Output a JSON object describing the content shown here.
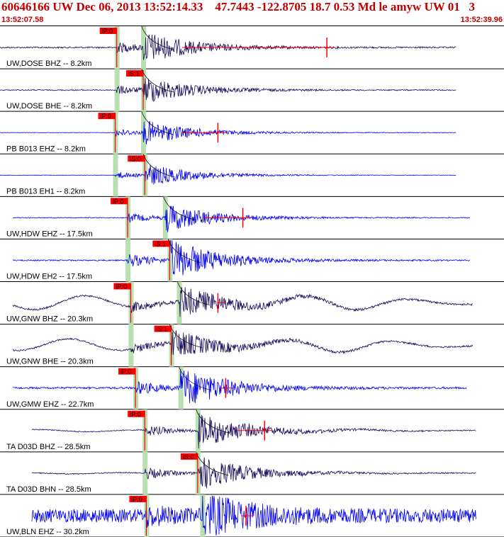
{
  "header": {
    "title": "60646166 UW Dec 06, 2013 13:52:14.33    47.7443 -122.8705 18.7 0.53 Md le amyw UW 01   3",
    "start_time": "13:52:07.58",
    "end_time": "13:52:39.96"
  },
  "colors": {
    "header_text": "#c00000",
    "trace_dark": "#1a0a5a",
    "trace_blue": "#0000ee",
    "pick_flag": "#ff0000",
    "pick_band": "#b8e0b0",
    "synthetic": "#000000"
  },
  "channels": [
    {
      "label": "UW,DOSE BHZ -- 8.2km",
      "color": "dark",
      "pick": "iP:0",
      "s": "",
      "tP": 7.5,
      "tS": 9.2,
      "amp": 0.7,
      "noise": 0.05,
      "end": 29.3,
      "red": true,
      "redMark": 19.0,
      "wave": 0
    },
    {
      "label": "UW,DOSE BHE -- 8.2km",
      "color": "dark",
      "pick": "iS:1",
      "s": "",
      "tP": 7.5,
      "tS": 9.2,
      "amp": 0.6,
      "noise": 0.04,
      "end": 29.3,
      "red": false,
      "wave": 0
    },
    {
      "label": "PB B013 EHZ -- 8.2km",
      "color": "blue",
      "pick": "iP:0",
      "s": "",
      "tP": 7.4,
      "tS": 9.2,
      "amp": 0.55,
      "noise": 0.02,
      "end": 29.3,
      "red": true,
      "redMark": 12.0,
      "wave": 0
    },
    {
      "label": "PB B013 EH1 -- 8.2km",
      "color": "blue",
      "pick": "iS:0",
      "s": "",
      "tP": 7.4,
      "tS": 9.3,
      "amp": 0.5,
      "noise": 0.02,
      "end": 29.3,
      "red": false,
      "wave": 0
    },
    {
      "label": "UW,HDW EHZ -- 17.5km",
      "color": "blue",
      "pick": "iP:0",
      "s": "",
      "tP": 8.2,
      "tS": 10.6,
      "amp": 0.65,
      "noise": 0.03,
      "end": 30.2,
      "red": true,
      "redMark": 13.6,
      "wave": 0
    },
    {
      "label": "UW,HDW EH2 -- 17.5km",
      "color": "blue",
      "pick": "iS:1",
      "s": "",
      "tP": 8.2,
      "tS": 10.9,
      "amp": 0.95,
      "noise": 0.03,
      "end": 30.2,
      "red": false,
      "wave": 0
    },
    {
      "label": "UW,GNW BHZ -- 20.3km",
      "color": "dark",
      "pick": "iP:0",
      "s": "",
      "tP": 8.4,
      "tS": 11.5,
      "amp": 0.7,
      "noise": 0.06,
      "end": 30.4,
      "red": true,
      "redMark": 12.0,
      "wave": 0.5
    },
    {
      "label": "UW,GNW BHE -- 20.3km",
      "color": "dark",
      "pick": "iS:1",
      "s": "",
      "tP": 8.4,
      "tS": 11.0,
      "amp": 0.65,
      "noise": 0.06,
      "end": 30.4,
      "red": false,
      "wave": 0.45
    },
    {
      "label": "UW,GMW EHZ -- 22.7km",
      "color": "blue",
      "pick": "iP:0",
      "s": "",
      "tP": 8.7,
      "tS": 11.6,
      "amp": 0.9,
      "noise": 0.05,
      "end": 30.0,
      "red": true,
      "redMark": 12.5,
      "wave": 0
    },
    {
      "label": "TA D03D BHZ -- 28.5km",
      "color": "dark",
      "pick": "iP:0",
      "s": "",
      "tP": 9.3,
      "tS": 12.7,
      "amp": 0.8,
      "noise": 0.03,
      "end": 30.6,
      "red": true,
      "redMark": 15.0,
      "wave": 0.08
    },
    {
      "label": "TA D03D BHN -- 28.5km",
      "color": "dark",
      "pick": "iS:0",
      "s": "",
      "tP": 9.3,
      "tS": 12.7,
      "amp": 0.8,
      "noise": 0.03,
      "end": 30.6,
      "red": false,
      "wave": 0.05
    },
    {
      "label": "UW,BLN EHZ -- 30.2km",
      "color": "blue",
      "pick": "iP:0",
      "s": "",
      "tP": 9.4,
      "tS": 13.0,
      "amp": 0.9,
      "noise": 0.35,
      "end": 30.6,
      "red": true,
      "redMark": 13.8,
      "wave": 0
    }
  ]
}
